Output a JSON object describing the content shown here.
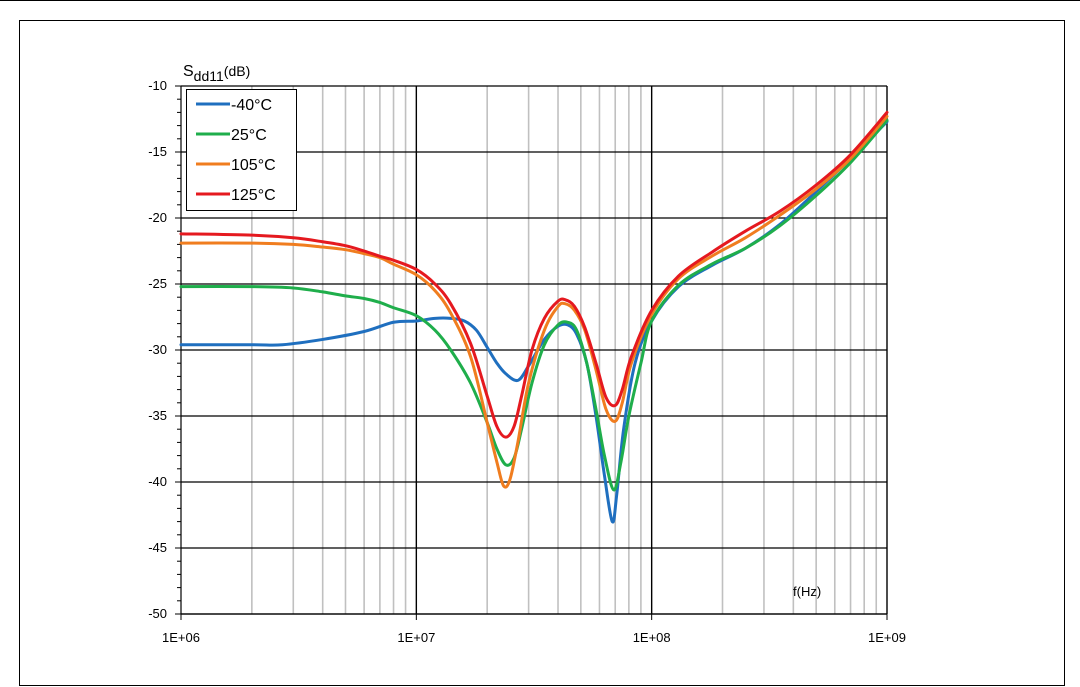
{
  "chart_data": {
    "type": "line",
    "title": "",
    "ylabel_main": "S",
    "ylabel_sub": "dd11",
    "ylabel_unit": "(dB)",
    "xlabel": "f(Hz)",
    "x_scale": "log",
    "xlim": [
      1000000,
      1000000000
    ],
    "ylim": [
      -50,
      -10
    ],
    "grid": true,
    "legend_position": "top-left",
    "x_ticks": [
      {
        "value": 1000000,
        "label": "1E+06"
      },
      {
        "value": 10000000,
        "label": "1E+07"
      },
      {
        "value": 100000000,
        "label": "1E+08"
      },
      {
        "value": 1000000000,
        "label": "1E+09"
      }
    ],
    "y_ticks": [
      {
        "value": -10,
        "label": "-10"
      },
      {
        "value": -15,
        "label": "-15"
      },
      {
        "value": -20,
        "label": "-20"
      },
      {
        "value": -25,
        "label": "-25"
      },
      {
        "value": -30,
        "label": "-30"
      },
      {
        "value": -35,
        "label": "-35"
      },
      {
        "value": -40,
        "label": "-40"
      },
      {
        "value": -45,
        "label": "-45"
      },
      {
        "value": -50,
        "label": "-50"
      }
    ],
    "series": [
      {
        "name": "-40°C",
        "color": "#1f6fbf",
        "points": [
          [
            1000000,
            -29.6
          ],
          [
            2000000,
            -29.6
          ],
          [
            2700000,
            -29.6
          ],
          [
            4000000,
            -29.2
          ],
          [
            6000000,
            -28.6
          ],
          [
            8000000,
            -27.9
          ],
          [
            10000000,
            -27.8
          ],
          [
            12000000,
            -27.6
          ],
          [
            14000000,
            -27.6
          ],
          [
            16000000,
            -27.8
          ],
          [
            18000000,
            -28.5
          ],
          [
            20000000,
            -29.8
          ],
          [
            22000000,
            -31.0
          ],
          [
            24000000,
            -31.8
          ],
          [
            27000000,
            -32.3
          ],
          [
            30000000,
            -31.2
          ],
          [
            35000000,
            -29.2
          ],
          [
            40000000,
            -28.2
          ],
          [
            44000000,
            -28.1
          ],
          [
            48000000,
            -28.8
          ],
          [
            53000000,
            -31.0
          ],
          [
            58000000,
            -35.0
          ],
          [
            63000000,
            -39.5
          ],
          [
            68000000,
            -43.0
          ],
          [
            71000000,
            -41.0
          ],
          [
            76000000,
            -36.0
          ],
          [
            85000000,
            -31.0
          ],
          [
            100000000,
            -27.8
          ],
          [
            130000000,
            -25.2
          ],
          [
            180000000,
            -23.6
          ],
          [
            250000000,
            -22.3
          ],
          [
            350000000,
            -20.5
          ],
          [
            500000000,
            -18.0
          ],
          [
            700000000,
            -15.5
          ],
          [
            1000000000,
            -12.7
          ]
        ]
      },
      {
        "name": "25°C",
        "color": "#1fae4b",
        "points": [
          [
            1000000,
            -25.2
          ],
          [
            2000000,
            -25.2
          ],
          [
            3000000,
            -25.3
          ],
          [
            4000000,
            -25.6
          ],
          [
            5000000,
            -25.9
          ],
          [
            6000000,
            -26.1
          ],
          [
            7000000,
            -26.4
          ],
          [
            8000000,
            -26.8
          ],
          [
            10000000,
            -27.4
          ],
          [
            12000000,
            -28.5
          ],
          [
            14000000,
            -30.0
          ],
          [
            17000000,
            -32.5
          ],
          [
            20000000,
            -35.5
          ],
          [
            22000000,
            -37.5
          ],
          [
            24000000,
            -38.7
          ],
          [
            26000000,
            -38.2
          ],
          [
            28000000,
            -36.0
          ],
          [
            31000000,
            -32.5
          ],
          [
            35000000,
            -29.6
          ],
          [
            40000000,
            -28.1
          ],
          [
            44000000,
            -27.9
          ],
          [
            48000000,
            -28.5
          ],
          [
            53000000,
            -31.0
          ],
          [
            58000000,
            -34.5
          ],
          [
            63000000,
            -38.0
          ],
          [
            69000000,
            -40.6
          ],
          [
            74000000,
            -38.5
          ],
          [
            80000000,
            -35.0
          ],
          [
            90000000,
            -31.0
          ],
          [
            100000000,
            -27.8
          ],
          [
            130000000,
            -25.1
          ],
          [
            180000000,
            -23.5
          ],
          [
            250000000,
            -22.3
          ],
          [
            350000000,
            -20.6
          ],
          [
            500000000,
            -18.3
          ],
          [
            700000000,
            -15.8
          ],
          [
            1000000000,
            -12.6
          ]
        ]
      },
      {
        "name": "105°C",
        "color": "#f07d1f",
        "points": [
          [
            1000000,
            -21.9
          ],
          [
            2000000,
            -21.9
          ],
          [
            3000000,
            -22.0
          ],
          [
            4000000,
            -22.2
          ],
          [
            5000000,
            -22.4
          ],
          [
            6000000,
            -22.7
          ],
          [
            7000000,
            -23.0
          ],
          [
            8000000,
            -23.5
          ],
          [
            10000000,
            -24.3
          ],
          [
            12000000,
            -25.5
          ],
          [
            14000000,
            -27.2
          ],
          [
            17000000,
            -30.5
          ],
          [
            20000000,
            -35.5
          ],
          [
            22000000,
            -38.5
          ],
          [
            23500000,
            -40.3
          ],
          [
            25000000,
            -39.8
          ],
          [
            27000000,
            -37.0
          ],
          [
            30000000,
            -32.5
          ],
          [
            35000000,
            -28.5
          ],
          [
            40000000,
            -26.7
          ],
          [
            43000000,
            -26.5
          ],
          [
            47000000,
            -27.0
          ],
          [
            52000000,
            -28.5
          ],
          [
            58000000,
            -31.5
          ],
          [
            64000000,
            -34.5
          ],
          [
            70000000,
            -35.4
          ],
          [
            75000000,
            -34.0
          ],
          [
            82000000,
            -31.0
          ],
          [
            100000000,
            -27.3
          ],
          [
            130000000,
            -24.6
          ],
          [
            180000000,
            -22.9
          ],
          [
            250000000,
            -21.5
          ],
          [
            350000000,
            -19.8
          ],
          [
            500000000,
            -17.8
          ],
          [
            700000000,
            -15.5
          ],
          [
            1000000000,
            -12.3
          ]
        ]
      },
      {
        "name": "125°C",
        "color": "#e5191f",
        "points": [
          [
            1000000,
            -21.2
          ],
          [
            2000000,
            -21.3
          ],
          [
            3000000,
            -21.5
          ],
          [
            4000000,
            -21.8
          ],
          [
            5000000,
            -22.1
          ],
          [
            6000000,
            -22.5
          ],
          [
            7000000,
            -22.9
          ],
          [
            8000000,
            -23.2
          ],
          [
            10000000,
            -23.9
          ],
          [
            12000000,
            -25.0
          ],
          [
            14000000,
            -26.5
          ],
          [
            17000000,
            -29.5
          ],
          [
            20000000,
            -33.5
          ],
          [
            22000000,
            -35.8
          ],
          [
            24000000,
            -36.6
          ],
          [
            26000000,
            -35.8
          ],
          [
            28000000,
            -33.5
          ],
          [
            31000000,
            -30.0
          ],
          [
            35000000,
            -27.6
          ],
          [
            40000000,
            -26.3
          ],
          [
            43000000,
            -26.2
          ],
          [
            47000000,
            -26.7
          ],
          [
            52000000,
            -28.3
          ],
          [
            58000000,
            -31.0
          ],
          [
            64000000,
            -33.6
          ],
          [
            70000000,
            -34.2
          ],
          [
            75000000,
            -33.0
          ],
          [
            82000000,
            -30.5
          ],
          [
            100000000,
            -27.0
          ],
          [
            130000000,
            -24.4
          ],
          [
            180000000,
            -22.6
          ],
          [
            250000000,
            -21.0
          ],
          [
            350000000,
            -19.5
          ],
          [
            500000000,
            -17.5
          ],
          [
            700000000,
            -15.2
          ],
          [
            1000000000,
            -12.0
          ]
        ]
      }
    ]
  }
}
